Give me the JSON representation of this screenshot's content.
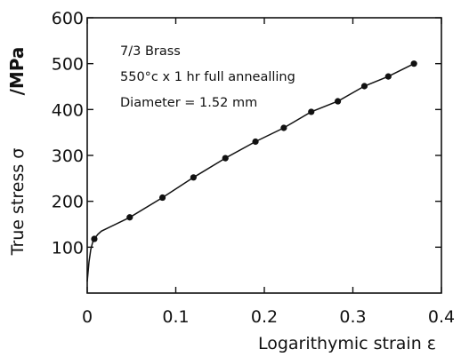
{
  "chart_data": {
    "type": "line",
    "xlabel": "Logarithymic strain ε",
    "ylabel": "True stress σ",
    "ylabel_unit": "/MPa",
    "annotations": [
      "7/3 Brass",
      "550°c x 1 hr full annealling",
      "Diameter = 1.52 mm"
    ],
    "xlim": [
      0,
      0.4
    ],
    "ylim": [
      0,
      600
    ],
    "x_ticks": [
      0,
      0.1,
      0.2,
      0.3,
      0.4
    ],
    "x_tick_labels": [
      "0",
      "0.1",
      "0.2",
      "0.3",
      "0.4"
    ],
    "y_ticks": [
      100,
      200,
      300,
      400,
      500,
      600
    ],
    "y_tick_labels": [
      "100",
      "200",
      "300",
      "400",
      "500",
      "600"
    ],
    "grid": false,
    "series": [
      {
        "style": "markers",
        "x": [
          0.008,
          0.048,
          0.085,
          0.12,
          0.156,
          0.19,
          0.222,
          0.253,
          0.283,
          0.313,
          0.34,
          0.369
        ],
        "y": [
          118,
          165,
          208,
          252,
          294,
          330,
          360,
          395,
          418,
          451,
          472,
          500
        ]
      },
      {
        "style": "line",
        "x": [
          0,
          0.002,
          0.004,
          0.006,
          0.008,
          0.012,
          0.016,
          0.048,
          0.085,
          0.12,
          0.156,
          0.19,
          0.222,
          0.253,
          0.283,
          0.313,
          0.34,
          0.369
        ],
        "y": [
          25,
          68,
          95,
          110,
          118,
          128,
          135,
          165,
          208,
          252,
          294,
          330,
          360,
          395,
          418,
          451,
          472,
          500
        ]
      }
    ]
  }
}
